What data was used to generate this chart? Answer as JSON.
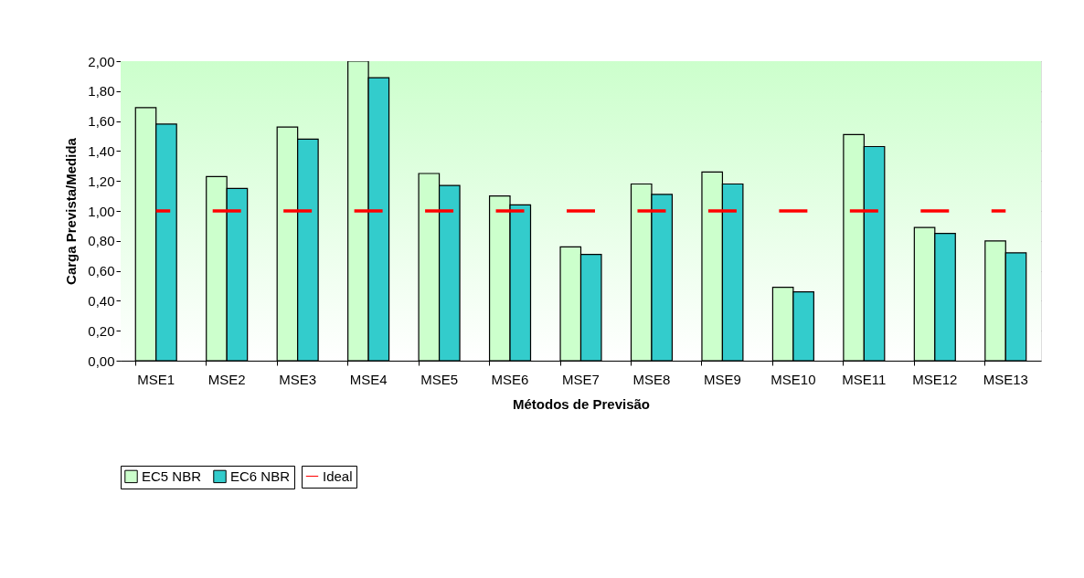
{
  "chart_data": {
    "type": "bar",
    "xlabel": "Métodos de Previsão",
    "ylabel": "Carga Prevista/Medida",
    "categories": [
      "MSE1",
      "MSE2",
      "MSE3",
      "MSE4",
      "MSE5",
      "MSE6",
      "MSE7",
      "MSE8",
      "MSE9",
      "MSE10",
      "MSE11",
      "MSE12",
      "MSE13"
    ],
    "series": [
      {
        "name": "EC5 NBR",
        "color": "#ccffcc",
        "values": [
          1.69,
          1.23,
          1.56,
          2.0,
          1.25,
          1.1,
          0.76,
          1.18,
          1.26,
          0.49,
          1.51,
          0.89,
          0.8
        ]
      },
      {
        "name": "EC6 NBR",
        "color": "#33cccc",
        "values": [
          1.58,
          1.15,
          1.48,
          1.89,
          1.17,
          1.04,
          0.71,
          1.11,
          1.18,
          0.46,
          1.43,
          0.85,
          0.72
        ]
      },
      {
        "name": "Ideal",
        "type": "line",
        "line_style": "dashed",
        "color": "#ff0000",
        "values": [
          1.0,
          1.0,
          1.0,
          1.0,
          1.0,
          1.0,
          1.0,
          1.0,
          1.0,
          1.0,
          1.0,
          1.0,
          1.0
        ]
      }
    ],
    "ylim": [
      0,
      2.0
    ],
    "yticks": [
      {
        "value": 0,
        "label": "0,00"
      },
      {
        "value": 0.2,
        "label": "0,20"
      },
      {
        "value": 0.4,
        "label": "0,40"
      },
      {
        "value": 0.6,
        "label": "0,60"
      },
      {
        "value": 0.8,
        "label": "0,80"
      },
      {
        "value": 1.0,
        "label": "1,00"
      },
      {
        "value": 1.2,
        "label": "1,20"
      },
      {
        "value": 1.4,
        "label": "1,40"
      },
      {
        "value": 1.6,
        "label": "1,60"
      },
      {
        "value": 1.8,
        "label": "1,80"
      },
      {
        "value": 2.0,
        "label": "2,00"
      }
    ],
    "grid": "y",
    "legend": "bottom"
  }
}
